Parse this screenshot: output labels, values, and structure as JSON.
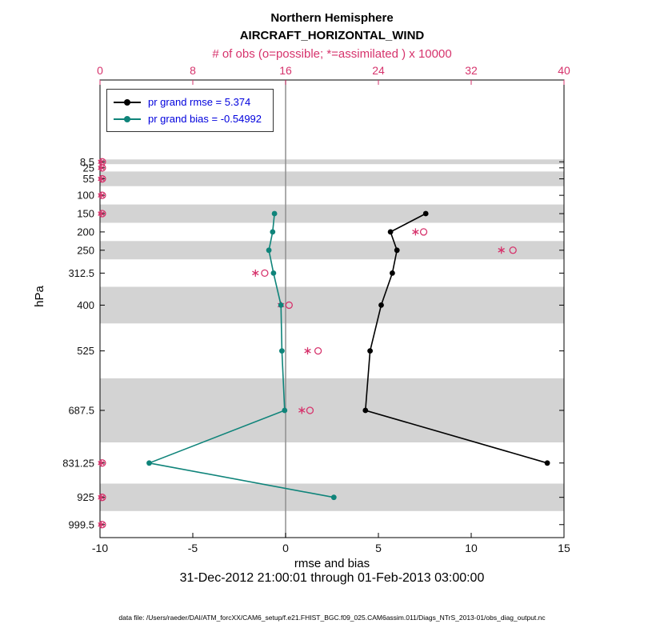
{
  "figure": {
    "title_line1": "Northern Hemisphere",
    "title_line2": "AIRCRAFT_HORIZONTAL_WIND",
    "obs_axis_label": "# of obs (o=possible; *=assimilated ) x 10000",
    "x_axis_label": "rmse and bias",
    "y_axis_label": "hPa",
    "time_range": "31-Dec-2012 21:00:01 through 01-Feb-2013 03:00:00",
    "data_file_note": "data file: /Users/raeder/DAI/ATM_forcXX/CAM6_setup/f.e21.FHIST_BGC.f09_025.CAM6assim.011/Diags_NTrS_2013-01/obs_diag_output.nc"
  },
  "legend": {
    "items": [
      {
        "label": "pr grand rmse = 5.374",
        "color": "#000000"
      },
      {
        "label": "pr grand bias = -0.54992",
        "color": "#0f847a"
      }
    ],
    "text_color": "#0000dd"
  },
  "colors": {
    "obs": "#d6336c",
    "rmse": "#000000",
    "bias": "#0f847a",
    "shading": "#d3d3d3",
    "zero_line": "#8f8f8f",
    "axis": "#000000",
    "tick_label": "#111111"
  },
  "chart_data": {
    "type": "line",
    "title": "Northern Hemisphere",
    "subtitle": "AIRCRAFT_HORIZONTAL_WIND",
    "xlabel": "rmse and bias",
    "ylabel": "hPa",
    "top_xlabel": "# of obs (o=possible; *=assimilated ) x 10000",
    "footer": "31-Dec-2012 21:00:01 through 01-Feb-2013 03:00:00",
    "legend_position": "upper-left",
    "grid": false,
    "xlim": [
      -10,
      15
    ],
    "x_ticks": [
      -10,
      -5,
      0,
      5,
      10,
      15
    ],
    "top_xlim": [
      0,
      40
    ],
    "top_x_ticks": [
      0,
      8,
      16,
      24,
      32,
      40
    ],
    "y_axis": {
      "unit": "hPa",
      "tick_levels": [
        8.5,
        25,
        55,
        100,
        150,
        200,
        250,
        312.5,
        400,
        525,
        687.5,
        831.25,
        925,
        999.5
      ],
      "range_top_to_bottom": [
        -215,
        1035
      ]
    },
    "shaded_pressure_bands": [
      [
        2,
        15
      ],
      [
        35,
        75
      ],
      [
        125,
        175
      ],
      [
        225,
        275
      ],
      [
        350,
        450
      ],
      [
        600,
        775
      ],
      [
        887.5,
        962.5
      ]
    ],
    "series": [
      {
        "name": "pr grand rmse = 5.374",
        "color": "#000000",
        "points": [
          {
            "level": 150,
            "value": 7.55
          },
          {
            "level": 200,
            "value": 5.65
          },
          {
            "level": 250,
            "value": 6.0
          },
          {
            "level": 312.5,
            "value": 5.75
          },
          {
            "level": 400,
            "value": 5.15
          },
          {
            "level": 525,
            "value": 4.55
          },
          {
            "level": 687.5,
            "value": 4.3
          },
          {
            "level": 831.25,
            "value": 14.1
          }
        ]
      },
      {
        "name": "pr grand bias = -0.54992",
        "color": "#0f847a",
        "points": [
          {
            "level": 150,
            "value": -0.6
          },
          {
            "level": 200,
            "value": -0.7
          },
          {
            "level": 250,
            "value": -0.9
          },
          {
            "level": 312.5,
            "value": -0.65
          },
          {
            "level": 400,
            "value": -0.25
          },
          {
            "level": 525,
            "value": -0.2
          },
          {
            "level": 687.5,
            "value": -0.05
          },
          {
            "level": 831.25,
            "value": -7.35
          },
          {
            "level": 925,
            "value": 2.6
          }
        ]
      }
    ],
    "obs_counts_x10000": [
      {
        "level": 8.5,
        "assimilated": 0.1,
        "possible": 0.2
      },
      {
        "level": 25,
        "assimilated": 0.1,
        "possible": 0.2
      },
      {
        "level": 55,
        "assimilated": 0.1,
        "possible": 0.2
      },
      {
        "level": 100,
        "assimilated": 0.1,
        "possible": 0.2
      },
      {
        "level": 150,
        "assimilated": 0.1,
        "possible": 0.2
      },
      {
        "level": 200,
        "assimilated": 27.2,
        "possible": 27.9
      },
      {
        "level": 250,
        "assimilated": 34.6,
        "possible": 35.6
      },
      {
        "level": 312.5,
        "assimilated": 13.4,
        "possible": 14.2
      },
      {
        "level": 400,
        "assimilated": 15.6,
        "possible": 16.3
      },
      {
        "level": 525,
        "assimilated": 17.9,
        "possible": 18.8
      },
      {
        "level": 687.5,
        "assimilated": 17.4,
        "possible": 18.1
      },
      {
        "level": 831.25,
        "assimilated": 0.1,
        "possible": 0.2
      },
      {
        "level": 925,
        "assimilated": 0.1,
        "possible": 0.2
      },
      {
        "level": 999.5,
        "assimilated": 0.1,
        "possible": 0.2
      }
    ]
  }
}
